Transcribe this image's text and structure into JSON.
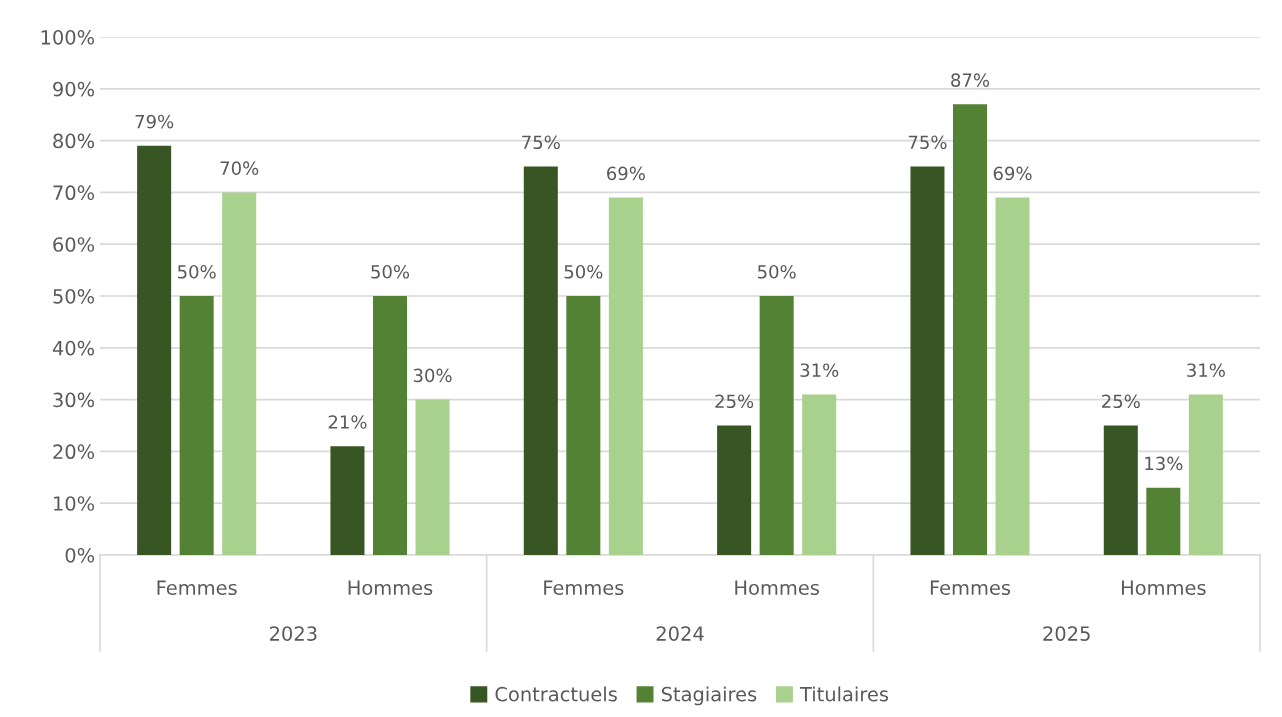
{
  "chart_data": {
    "type": "bar",
    "categories": [
      "Femmes",
      "Hommes",
      "Femmes",
      "Hommes",
      "Femmes",
      "Hommes"
    ],
    "series": [
      {
        "name": "Contractuels",
        "color": "#375623",
        "values": [
          79,
          21,
          75,
          25,
          75,
          25
        ],
        "value_labels": [
          "79%",
          "21%",
          "75%",
          "25%",
          "75%",
          "25%"
        ]
      },
      {
        "name": "Stagiaires",
        "color": "#548235",
        "values": [
          50,
          50,
          50,
          50,
          87,
          13
        ],
        "value_labels": [
          "50%",
          "50%",
          "50%",
          "50%",
          "87%",
          "13%"
        ]
      },
      {
        "name": "Titulaires",
        "color": "#a9d18e",
        "values": [
          70,
          30,
          69,
          31,
          69,
          31
        ],
        "value_labels": [
          "70%",
          "30%",
          "69%",
          "31%",
          "69%",
          "31%"
        ]
      }
    ],
    "annotations": [
      "2023",
      "2024",
      "2025"
    ],
    "ylim": [
      0,
      100
    ],
    "yticks": [
      {
        "value": 0,
        "label": "0%"
      },
      {
        "value": 10,
        "label": "10%"
      },
      {
        "value": 20,
        "label": "20%"
      },
      {
        "value": 30,
        "label": "30%"
      },
      {
        "value": 40,
        "label": "40%"
      },
      {
        "value": 50,
        "label": "50%"
      },
      {
        "value": 60,
        "label": "60%"
      },
      {
        "value": 70,
        "label": "70%"
      },
      {
        "value": 80,
        "label": "80%"
      },
      {
        "value": 90,
        "label": "90%"
      },
      {
        "value": 100,
        "label": "100%"
      }
    ],
    "grid": "y",
    "legend": "bottom"
  }
}
